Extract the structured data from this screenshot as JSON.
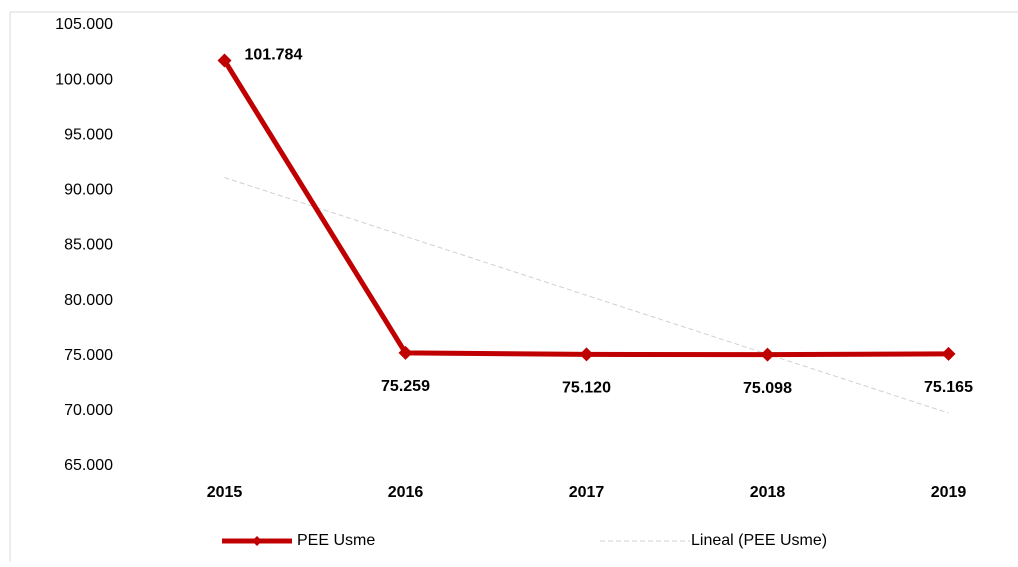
{
  "chart_data": {
    "type": "line",
    "categories": [
      "2015",
      "2016",
      "2017",
      "2018",
      "2019"
    ],
    "series": [
      {
        "name": "PEE Usme",
        "color": "#c00000",
        "marker": "diamond",
        "values": [
          101784,
          75259,
          75120,
          75098,
          75165
        ],
        "value_labels": [
          "101.784",
          "75.259",
          "75.120",
          "75.098",
          "75.165"
        ]
      },
      {
        "name": "Lineal (PEE Usme)",
        "color": "#d0d0d0",
        "dashed": true,
        "values": [
          91165,
          85825,
          80485,
          75145,
          69805
        ]
      }
    ],
    "ylim": [
      65000,
      105000
    ],
    "yticks": [
      {
        "value": 65000,
        "label": "65.000"
      },
      {
        "value": 70000,
        "label": "70.000"
      },
      {
        "value": 75000,
        "label": "75.000"
      },
      {
        "value": 80000,
        "label": "80.000"
      },
      {
        "value": 85000,
        "label": "85.000"
      },
      {
        "value": 90000,
        "label": "90.000"
      },
      {
        "value": 95000,
        "label": "95.000"
      },
      {
        "value": 100000,
        "label": "100.000"
      },
      {
        "value": 105000,
        "label": "105.000"
      }
    ],
    "grid": false,
    "legend": "bottom"
  }
}
